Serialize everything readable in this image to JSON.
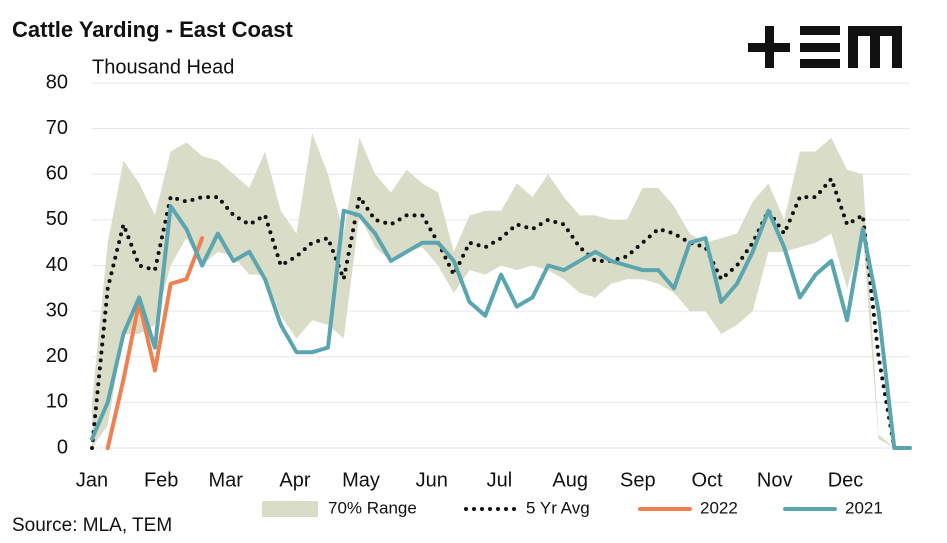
{
  "chart_data": {
    "type": "line",
    "title": "Cattle Yarding - East Coast",
    "subtitle": "Thousand Head",
    "source": "Source: MLA, TEM",
    "x": [
      1,
      2,
      3,
      4,
      5,
      6,
      7,
      8,
      9,
      10,
      11,
      12,
      13,
      14,
      15,
      16,
      17,
      18,
      19,
      20,
      21,
      22,
      23,
      24,
      25,
      26,
      27,
      28,
      29,
      30,
      31,
      32,
      33,
      34,
      35,
      36,
      37,
      38,
      39,
      40,
      41,
      42,
      43,
      44,
      45,
      46,
      47,
      48,
      49,
      50,
      51,
      52,
      53
    ],
    "xlim": [
      1,
      53
    ],
    "xticks": [
      {
        "value": 1,
        "label": "Jan"
      },
      {
        "value": 5.4,
        "label": "Feb"
      },
      {
        "value": 9.5,
        "label": "Mar"
      },
      {
        "value": 13.9,
        "label": "Apr"
      },
      {
        "value": 18.1,
        "label": "May"
      },
      {
        "value": 22.6,
        "label": "Jun"
      },
      {
        "value": 26.9,
        "label": "Jul"
      },
      {
        "value": 31.4,
        "label": "Aug"
      },
      {
        "value": 35.7,
        "label": "Sep"
      },
      {
        "value": 40.1,
        "label": "Oct"
      },
      {
        "value": 44.4,
        "label": "Nov"
      },
      {
        "value": 48.9,
        "label": "Dec"
      }
    ],
    "ylim": [
      0,
      80
    ],
    "yticks": [
      0,
      10,
      20,
      30,
      40,
      50,
      60,
      70,
      80
    ],
    "grid": true,
    "series": [
      {
        "name": "70% Range",
        "type": "band",
        "color": "#d9dcc6",
        "values": [
          10,
          45,
          63,
          58,
          51,
          65,
          67,
          64,
          63,
          60,
          57,
          65,
          52,
          47,
          69,
          60,
          47,
          68,
          60,
          56,
          61,
          58,
          56,
          43,
          51,
          52,
          52,
          58,
          55,
          60,
          55,
          51,
          51,
          50,
          50,
          57,
          57,
          53,
          47,
          45,
          46,
          47,
          54,
          58,
          50,
          65,
          65,
          68,
          61,
          60,
          3,
          0,
          0
        ],
        "low": [
          0,
          5,
          25,
          25,
          27,
          40,
          46,
          40,
          43,
          42,
          38,
          38,
          29,
          24,
          28,
          27,
          24,
          51,
          44,
          41,
          43,
          44,
          40,
          34,
          39,
          38,
          40,
          39,
          40,
          39,
          37,
          34,
          33,
          36,
          37,
          37,
          36,
          34,
          30,
          30,
          25,
          27,
          30,
          43,
          43,
          44,
          45,
          47,
          35,
          47,
          2,
          0,
          0
        ]
      },
      {
        "name": "5 Yr Avg",
        "type": "dotted",
        "color": "#111111",
        "values": [
          0,
          35,
          49,
          40,
          39,
          55,
          54,
          55,
          55,
          51,
          49,
          51,
          40,
          42,
          45,
          46,
          37,
          55,
          50,
          49,
          51,
          51,
          45,
          38,
          45,
          44,
          46,
          49,
          48,
          50,
          49,
          44,
          41,
          41,
          42,
          45,
          48,
          47,
          45,
          44,
          37,
          40,
          45,
          52,
          47,
          55,
          55,
          59,
          49,
          51,
          20,
          0,
          0
        ]
      },
      {
        "name": "2022",
        "type": "line",
        "color": "#f08050",
        "values": [
          null,
          0,
          15,
          32,
          17,
          36,
          37,
          46,
          null,
          null,
          null,
          null,
          null,
          null,
          null,
          null,
          null,
          null,
          null,
          null,
          null,
          null,
          null,
          null,
          null,
          null,
          null,
          null,
          null,
          null,
          null,
          null,
          null,
          null,
          null,
          null,
          null,
          null,
          null,
          null,
          null,
          null,
          null,
          null,
          null,
          null,
          null,
          null,
          null,
          null,
          null,
          null,
          null
        ]
      },
      {
        "name": "2021",
        "type": "line",
        "color": "#5aa5b0",
        "values": [
          2,
          10,
          25,
          33,
          22,
          53,
          48,
          40,
          47,
          41,
          43,
          37,
          27,
          21,
          21,
          22,
          52,
          51,
          47,
          41,
          43,
          45,
          45,
          41,
          32,
          29,
          38,
          31,
          33,
          40,
          39,
          41,
          43,
          41,
          40,
          39,
          39,
          35,
          45,
          46,
          32,
          36,
          43,
          52,
          44,
          33,
          38,
          41,
          28,
          48,
          30,
          0,
          0
        ]
      }
    ]
  }
}
